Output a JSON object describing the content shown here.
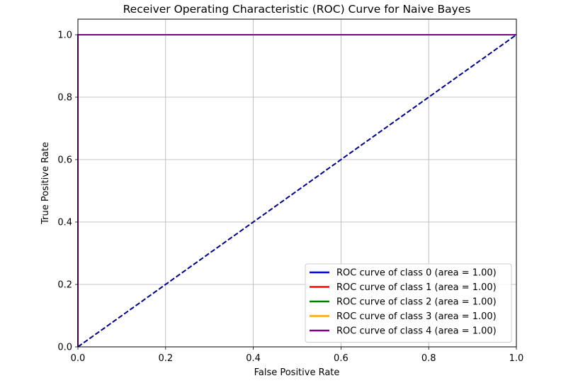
{
  "chart_data": {
    "type": "line",
    "title": "Receiver Operating Characteristic (ROC) Curve for Naive Bayes",
    "xlabel": "False Positive Rate",
    "ylabel": "True Positive Rate",
    "xlim": [
      0.0,
      1.0
    ],
    "ylim": [
      0.0,
      1.05
    ],
    "xticks": [
      0.0,
      0.2,
      0.4,
      0.6,
      0.8,
      1.0
    ],
    "yticks": [
      0.0,
      0.2,
      0.4,
      0.6,
      0.8,
      1.0
    ],
    "xtick_labels": [
      "0.0",
      "0.2",
      "0.4",
      "0.6",
      "0.8",
      "1.0"
    ],
    "ytick_labels": [
      "0.0",
      "0.2",
      "0.4",
      "0.6",
      "0.8",
      "1.0"
    ],
    "grid": true,
    "legend_position": "lower-right",
    "series": [
      {
        "name": "ROC curve of class 0 (area = 1.00)",
        "color": "#0000ff",
        "x": [
          0.0,
          0.0,
          1.0
        ],
        "y": [
          0.0,
          1.0,
          1.0
        ]
      },
      {
        "name": "ROC curve of class 1 (area = 1.00)",
        "color": "#ff0000",
        "x": [
          0.0,
          0.0,
          1.0
        ],
        "y": [
          0.0,
          1.0,
          1.0
        ]
      },
      {
        "name": "ROC curve of class 2 (area = 1.00)",
        "color": "#008000",
        "x": [
          0.0,
          0.0,
          1.0
        ],
        "y": [
          0.0,
          1.0,
          1.0
        ]
      },
      {
        "name": "ROC curve of class 3 (area = 1.00)",
        "color": "#ffa500",
        "x": [
          0.0,
          0.0,
          1.0
        ],
        "y": [
          0.0,
          1.0,
          1.0
        ]
      },
      {
        "name": "ROC curve of class 4 (area = 1.00)",
        "color": "#800080",
        "x": [
          0.0,
          0.0,
          1.0
        ],
        "y": [
          0.0,
          1.0,
          1.0
        ]
      }
    ],
    "reference_line": {
      "color": "#000080",
      "style": "dashed",
      "x": [
        0.0,
        1.0
      ],
      "y": [
        0.0,
        1.0
      ]
    }
  }
}
